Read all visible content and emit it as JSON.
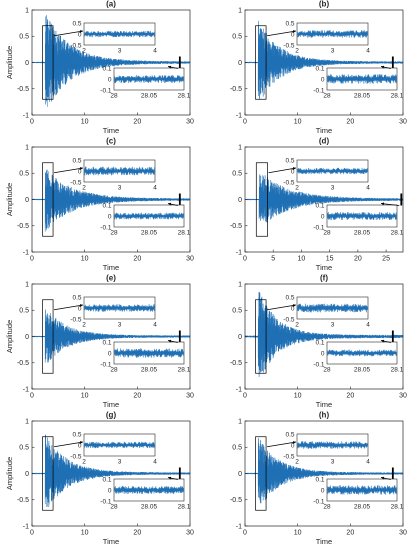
{
  "figure": {
    "colors": {
      "signal": "#1f6fb4",
      "axis": "#262626",
      "marker": "#000000"
    }
  },
  "chart_data": [
    {
      "type": "line",
      "panel_label": "(a)",
      "xlabel": "Time",
      "ylabel": "Amplitude",
      "xlim": [
        0,
        30
      ],
      "ylim": [
        -1,
        1
      ],
      "xticks": [
        "0",
        "10",
        "20",
        "30"
      ],
      "yticks": [
        "-1",
        "-0.5",
        "0",
        "0.5",
        "1"
      ],
      "signal": {
        "description": "decaying vibration response",
        "peak_amplitude": 0.95,
        "onset_time": 2.5,
        "decay_constant": 4.5,
        "noise_floor": 0.02
      },
      "zoom_box": {
        "time_range": [
          2,
          4
        ],
        "amplitude_range": [
          -0.7,
          0.7
        ]
      },
      "marker_time": 28.07,
      "inset_top": {
        "xlim": [
          2,
          4
        ],
        "ylim": [
          -0.5,
          0.5
        ],
        "xticks": [
          "2",
          "3",
          "4"
        ],
        "yticks": [
          "0.5",
          "0",
          "-0.5"
        ]
      },
      "inset_bottom": {
        "xlim": [
          28,
          28.1
        ],
        "ylim": [
          -0.1,
          0.1
        ],
        "xticks": [
          "28",
          "28.05",
          "28.1"
        ],
        "yticks": [
          "0.1",
          "0",
          "-0.1"
        ]
      }
    },
    {
      "type": "line",
      "panel_label": "(b)",
      "xlabel": "Time",
      "ylabel": "",
      "xlim": [
        0,
        30
      ],
      "ylim": [
        -1,
        1
      ],
      "xticks": [
        "0",
        "10",
        "20",
        "30"
      ],
      "yticks": [
        "-1",
        "-0.5",
        "0",
        "0.5",
        "1"
      ],
      "signal": {
        "description": "decaying vibration response",
        "peak_amplitude": 0.8,
        "onset_time": 2.5,
        "decay_constant": 4.0,
        "noise_floor": 0.02
      },
      "zoom_box": {
        "time_range": [
          2,
          4
        ],
        "amplitude_range": [
          -0.7,
          0.7
        ]
      },
      "marker_time": 28.07,
      "inset_top": {
        "xlim": [
          2,
          4
        ],
        "ylim": [
          -0.5,
          0.5
        ],
        "xticks": [
          "2",
          "3",
          "4"
        ],
        "yticks": [
          "0.5",
          "0",
          "-0.5"
        ]
      },
      "inset_bottom": {
        "xlim": [
          28,
          28.1
        ],
        "ylim": [
          -0.1,
          0.1
        ],
        "xticks": [
          "28",
          "28.05",
          "28.1"
        ],
        "yticks": [
          "0.1",
          "0",
          "-0.1"
        ]
      }
    },
    {
      "type": "line",
      "panel_label": "(c)",
      "xlabel": "Time",
      "ylabel": "Amplitude",
      "xlim": [
        0,
        30
      ],
      "ylim": [
        -1,
        1
      ],
      "xticks": [
        "0",
        "10",
        "20",
        "30"
      ],
      "yticks": [
        "-1",
        "-0.5",
        "0",
        "0.5",
        "1"
      ],
      "signal": {
        "description": "decaying vibration response",
        "peak_amplitude": 0.6,
        "onset_time": 2.5,
        "decay_constant": 5.0,
        "noise_floor": 0.02
      },
      "zoom_box": {
        "time_range": [
          2,
          4
        ],
        "amplitude_range": [
          -0.7,
          0.7
        ]
      },
      "marker_time": 28.07,
      "inset_top": {
        "xlim": [
          2,
          4
        ],
        "ylim": [
          -0.5,
          0.5
        ],
        "xticks": [
          "2",
          "3",
          "4"
        ],
        "yticks": [
          "0.5",
          "0",
          "-0.5"
        ]
      },
      "inset_bottom": {
        "xlim": [
          28,
          28.1
        ],
        "ylim": [
          -0.1,
          0.1
        ],
        "xticks": [
          "28",
          "28.05",
          "28.1"
        ],
        "yticks": [
          "0.1",
          "0",
          "-0.1"
        ]
      }
    },
    {
      "type": "line",
      "panel_label": "(d)",
      "xlabel": "Time",
      "ylabel": "",
      "xlim": [
        0,
        28
      ],
      "ylim": [
        -1,
        1
      ],
      "xticks": [
        "0",
        "5",
        "10",
        "15",
        "20",
        "25"
      ],
      "yticks": [
        "-1",
        "-0.5",
        "0",
        "0.5",
        "1"
      ],
      "signal": {
        "description": "decaying vibration response",
        "peak_amplitude": 0.55,
        "onset_time": 2.5,
        "decay_constant": 5.0,
        "noise_floor": 0.02
      },
      "zoom_box": {
        "time_range": [
          2,
          4
        ],
        "amplitude_range": [
          -0.7,
          0.7
        ]
      },
      "marker_time": 28.07,
      "inset_top": {
        "xlim": [
          2,
          4
        ],
        "ylim": [
          -0.5,
          0.5
        ],
        "xticks": [
          "2",
          "3",
          "4"
        ],
        "yticks": [
          "0.5",
          "0",
          "-0.5"
        ]
      },
      "inset_bottom": {
        "xlim": [
          28,
          28.1
        ],
        "ylim": [
          -0.1,
          0.1
        ],
        "xticks": [
          "28",
          "28.05",
          "28.1"
        ],
        "yticks": [
          "0.1",
          "0",
          "-0.1"
        ]
      }
    },
    {
      "type": "line",
      "panel_label": "(e)",
      "xlabel": "Time",
      "ylabel": "Amplitude",
      "xlim": [
        0,
        30
      ],
      "ylim": [
        -1,
        1
      ],
      "xticks": [
        "0",
        "10",
        "20",
        "30"
      ],
      "yticks": [
        "-1",
        "-0.5",
        "0",
        "0.5",
        "1"
      ],
      "signal": {
        "description": "decaying vibration response",
        "peak_amplitude": 0.55,
        "onset_time": 2.5,
        "decay_constant": 4.0,
        "noise_floor": 0.02
      },
      "zoom_box": {
        "time_range": [
          2,
          4
        ],
        "amplitude_range": [
          -0.7,
          0.7
        ]
      },
      "marker_time": 28.07,
      "inset_top": {
        "xlim": [
          2,
          4
        ],
        "ylim": [
          -0.5,
          0.5
        ],
        "xticks": [
          "2",
          "3",
          "4"
        ],
        "yticks": [
          "0.5",
          "0",
          "-0.5"
        ]
      },
      "inset_bottom": {
        "xlim": [
          28,
          28.1
        ],
        "ylim": [
          -0.1,
          0.1
        ],
        "xticks": [
          "28",
          "28.05",
          "28.1"
        ],
        "yticks": [
          "0.1",
          "0",
          "-0.1"
        ]
      }
    },
    {
      "type": "line",
      "panel_label": "(f)",
      "xlabel": "Time",
      "ylabel": "",
      "xlim": [
        0,
        30
      ],
      "ylim": [
        -1,
        1
      ],
      "xticks": [
        "0",
        "10",
        "20",
        "30"
      ],
      "yticks": [
        "-1",
        "-0.5",
        "0",
        "0.5",
        "1"
      ],
      "signal": {
        "description": "decaying vibration response",
        "peak_amplitude": 0.9,
        "onset_time": 2.5,
        "decay_constant": 3.5,
        "noise_floor": 0.03
      },
      "zoom_box": {
        "time_range": [
          2,
          4
        ],
        "amplitude_range": [
          -0.7,
          0.7
        ]
      },
      "marker_time": 28.07,
      "inset_top": {
        "xlim": [
          2,
          4
        ],
        "ylim": [
          -0.5,
          0.5
        ],
        "xticks": [
          "2",
          "3",
          "4"
        ],
        "yticks": [
          "0.5",
          "0",
          "-0.5"
        ]
      },
      "inset_bottom": {
        "xlim": [
          28,
          28.1
        ],
        "ylim": [
          -0.1,
          0.1
        ],
        "xticks": [
          "28",
          "28.05",
          "28.1"
        ],
        "yticks": [
          "0.1",
          "0",
          "-0.1"
        ]
      }
    },
    {
      "type": "line",
      "panel_label": "(g)",
      "xlabel": "Time",
      "ylabel": "Amplitude",
      "xlim": [
        0,
        30
      ],
      "ylim": [
        -1,
        1
      ],
      "xticks": [
        "0",
        "10",
        "20",
        "30"
      ],
      "yticks": [
        "-1",
        "-0.5",
        "0",
        "0.5",
        "1"
      ],
      "signal": {
        "description": "decaying vibration response",
        "peak_amplitude": 0.75,
        "onset_time": 2.5,
        "decay_constant": 4.0,
        "noise_floor": 0.02
      },
      "zoom_box": {
        "time_range": [
          2,
          4
        ],
        "amplitude_range": [
          -0.7,
          0.7
        ]
      },
      "marker_time": 28.07,
      "inset_top": {
        "xlim": [
          2,
          4
        ],
        "ylim": [
          -0.5,
          0.5
        ],
        "xticks": [
          "2",
          "3",
          "4"
        ],
        "yticks": [
          "0.5",
          "0",
          "-0.5"
        ]
      },
      "inset_bottom": {
        "xlim": [
          28,
          28.1
        ],
        "ylim": [
          -0.1,
          0.1
        ],
        "xticks": [
          "28",
          "28.05",
          "28.1"
        ],
        "yticks": [
          "0.1",
          "0",
          "-0.1"
        ]
      }
    },
    {
      "type": "line",
      "panel_label": "(h)",
      "xlabel": "Time",
      "ylabel": "",
      "xlim": [
        0,
        30
      ],
      "ylim": [
        -1,
        1
      ],
      "xticks": [
        "0",
        "10",
        "20",
        "30"
      ],
      "yticks": [
        "-1",
        "-0.5",
        "0",
        "0.5",
        "1"
      ],
      "signal": {
        "description": "decaying vibration response",
        "peak_amplitude": 0.7,
        "onset_time": 2.5,
        "decay_constant": 3.8,
        "noise_floor": 0.02
      },
      "zoom_box": {
        "time_range": [
          2,
          4
        ],
        "amplitude_range": [
          -0.7,
          0.7
        ]
      },
      "marker_time": 28.07,
      "inset_top": {
        "xlim": [
          2,
          4
        ],
        "ylim": [
          -0.5,
          0.5
        ],
        "xticks": [
          "2",
          "3",
          "4"
        ],
        "yticks": [
          "0.5",
          "0",
          "-0.5"
        ]
      },
      "inset_bottom": {
        "xlim": [
          28,
          28.1
        ],
        "ylim": [
          -0.1,
          0.1
        ],
        "xticks": [
          "28",
          "28.05",
          "28.1"
        ],
        "yticks": [
          "0.1",
          "0",
          "-0.1"
        ]
      }
    }
  ]
}
